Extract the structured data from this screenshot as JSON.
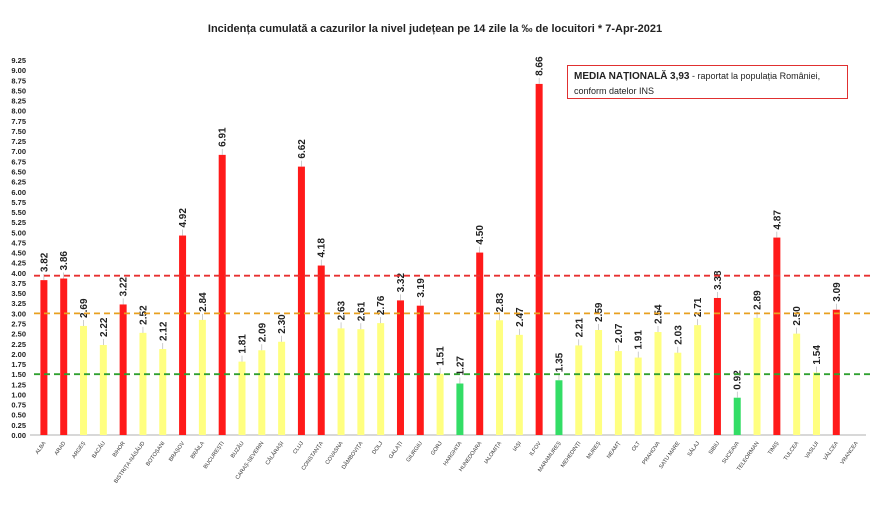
{
  "title": "Incidența cumulată a cazurilor la nivel județean pe 14 zile la ‰ de locuitori *   7-Apr-2021",
  "callout": {
    "label": "MEDIA NAȚIONALĂ",
    "value": "3,93",
    "suffix": "- raportat la populația României,",
    "line2": "conform datelor INS"
  },
  "colors": {
    "red": "#ff1a1a",
    "yellow": "#ffff80",
    "green": "#33dd66",
    "line_red": "#e83030",
    "line_orange": "#e8a020",
    "line_green": "#30a030"
  },
  "chart_data": {
    "type": "bar",
    "title": "Incidența cumulată a cazurilor la nivel județean pe 14 zile la ‰ de locuitori *   7-Apr-2021",
    "xlabel": "",
    "ylabel": "",
    "ylim": [
      0,
      9.25
    ],
    "ytick_step": 0.25,
    "yticks": [
      "0.00",
      "0.25",
      "0.50",
      "0.75",
      "1.00",
      "1.25",
      "1.50",
      "1.75",
      "2.00",
      "2.25",
      "2.50",
      "2.75",
      "3.00",
      "3.25",
      "3.50",
      "3.75",
      "4.00",
      "4.25",
      "4.50",
      "4.75",
      "5.00",
      "5.25",
      "5.50",
      "5.75",
      "6.00",
      "6.25",
      "6.50",
      "6.75",
      "7.00",
      "7.25",
      "7.50",
      "7.75",
      "8.00",
      "8.25",
      "8.50",
      "8.75",
      "9.00",
      "9.25"
    ],
    "grid": false,
    "reference_lines": [
      {
        "value": 3.93,
        "color": "red"
      },
      {
        "value": 3.0,
        "color": "orange"
      },
      {
        "value": 1.5,
        "color": "green"
      }
    ],
    "categories": [
      "ALBA",
      "ARAD",
      "ARGEȘ",
      "BACĂU",
      "BIHOR",
      "BISTRIȚA-NĂSĂUD",
      "BOTOȘANI",
      "BRAȘOV",
      "BRĂILA",
      "BUCUREȘTI",
      "BUZĂU",
      "CARAȘ-SEVERIN",
      "CĂLĂRAȘI",
      "CLUJ",
      "CONSTANȚA",
      "COVASNA",
      "DÂMBOVIȚA",
      "DOLJ",
      "GALAȚI",
      "GIURGIU",
      "GORJ",
      "HARGHITA",
      "HUNEDOARA",
      "IALOMIȚA",
      "IAȘI",
      "ILFOV",
      "MARAMUREȘ",
      "MEHEDINȚI",
      "MUREȘ",
      "NEAMȚ",
      "OLT",
      "PRAHOVA",
      "SATU MARE",
      "SĂLAJ",
      "SIBIU",
      "SUCEAVA",
      "TELEORMAN",
      "TIMIȘ",
      "TULCEA",
      "VASLUI",
      "VÂLCEA",
      "VRANCEA"
    ],
    "values": [
      3.82,
      3.86,
      2.69,
      2.22,
      3.22,
      2.52,
      2.12,
      4.92,
      2.84,
      6.91,
      1.81,
      2.09,
      2.3,
      6.62,
      4.18,
      2.63,
      2.61,
      2.76,
      3.32,
      3.19,
      1.51,
      1.27,
      4.5,
      2.83,
      2.47,
      8.66,
      1.35,
      2.21,
      2.59,
      2.07,
      1.91,
      2.54,
      2.03,
      2.71,
      3.38,
      0.92,
      2.89,
      4.87,
      2.5,
      1.54,
      3.09,
      null
    ],
    "value_labels": [
      "3.82",
      "3.86",
      "2.69",
      "2.22",
      "3.22",
      "2.52",
      "2.12",
      "4.92",
      "2.84",
      "6.91",
      "1.81",
      "2.09",
      "2.30",
      "6.62",
      "4.18",
      "2.63",
      "2.61",
      "2.76",
      "3.32",
      "3.19",
      "1.51",
      "1.27",
      "4.50",
      "2.83",
      "2.47",
      "8.66",
      "1.35",
      "2.21",
      "2.59",
      "2.07",
      "1.91",
      "2.54",
      "2.03",
      "2.71",
      "3.38",
      "0.92",
      "2.89",
      "4.87",
      "2.50",
      "1.54",
      "3.09",
      ""
    ],
    "bar_colors": [
      "red",
      "red",
      "yellow",
      "yellow",
      "red",
      "yellow",
      "yellow",
      "red",
      "yellow",
      "red",
      "yellow",
      "yellow",
      "yellow",
      "red",
      "red",
      "yellow",
      "yellow",
      "yellow",
      "red",
      "red",
      "yellow",
      "green",
      "red",
      "yellow",
      "yellow",
      "red",
      "green",
      "yellow",
      "yellow",
      "yellow",
      "yellow",
      "yellow",
      "yellow",
      "yellow",
      "red",
      "green",
      "yellow",
      "red",
      "yellow",
      "yellow",
      "red",
      "red"
    ]
  }
}
